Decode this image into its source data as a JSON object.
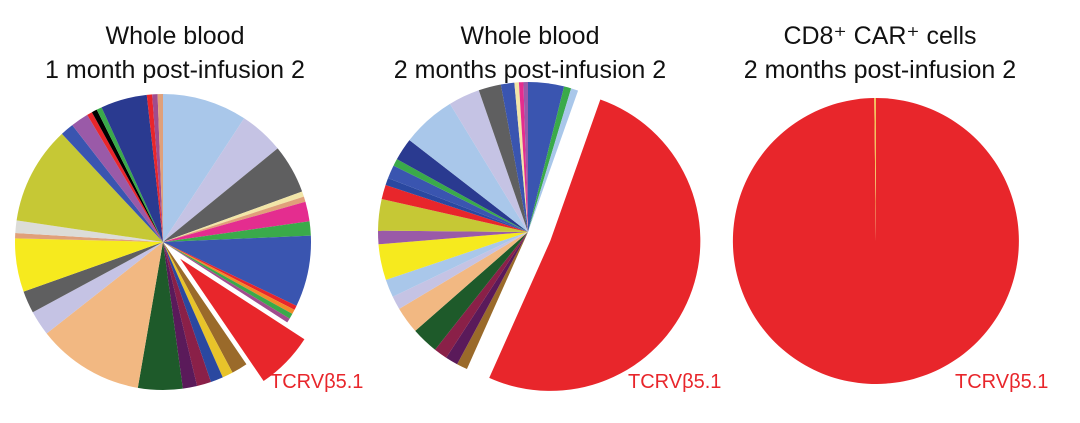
{
  "chart_data": [
    {
      "type": "pie",
      "title": [
        "Whole blood",
        "1 month post-infusion 2"
      ],
      "highlight_label": "TCRVβ5.1",
      "highlight_color": "#e8262b",
      "start_angle_deg": 0,
      "slices": [
        {
          "value": 9.5,
          "color": "#a9c7ea"
        },
        {
          "value": 5.0,
          "color": "#c5c3e4"
        },
        {
          "value": 5.5,
          "color": "#5f5f60"
        },
        {
          "value": 0.6,
          "color": "#f2e6a8"
        },
        {
          "value": 0.6,
          "color": "#e0a07a"
        },
        {
          "value": 2.2,
          "color": "#e42d8f"
        },
        {
          "value": 1.6,
          "color": "#3aaa4a"
        },
        {
          "value": 8.0,
          "color": "#3a55b0"
        },
        {
          "value": 0.5,
          "color": "#e8262b"
        },
        {
          "value": 0.5,
          "color": "#f28a2a"
        },
        {
          "value": 0.6,
          "color": "#3aaa4a"
        },
        {
          "value": 0.5,
          "color": "#a04c8e"
        },
        {
          "value": 6.5,
          "color": "#e8262b",
          "highlight": true
        },
        {
          "value": 1.8,
          "color": "#9a6a2a"
        },
        {
          "value": 1.2,
          "color": "#e8c32a"
        },
        {
          "value": 1.4,
          "color": "#2a48a0"
        },
        {
          "value": 1.6,
          "color": "#8a2048"
        },
        {
          "value": 1.6,
          "color": "#5a1a5a"
        },
        {
          "value": 5.0,
          "color": "#1e5a2a"
        },
        {
          "value": 12.0,
          "color": "#f2b882"
        },
        {
          "value": 2.8,
          "color": "#c5c3e4"
        },
        {
          "value": 2.5,
          "color": "#5f5f60"
        },
        {
          "value": 6.0,
          "color": "#f6ea1e"
        },
        {
          "value": 0.6,
          "color": "#e0a07a"
        },
        {
          "value": 1.4,
          "color": "#dcdcd8"
        },
        {
          "value": 11.0,
          "color": "#c6c835"
        },
        {
          "value": 1.5,
          "color": "#3a55b0"
        },
        {
          "value": 2.0,
          "color": "#9a5aa8"
        },
        {
          "value": 0.6,
          "color": "#e8262b"
        },
        {
          "value": 0.6,
          "color": "#000000"
        },
        {
          "value": 0.6,
          "color": "#3aaa4a"
        },
        {
          "value": 5.2,
          "color": "#2a3a90"
        },
        {
          "value": 0.6,
          "color": "#e8262b"
        },
        {
          "value": 0.6,
          "color": "#a04c8e"
        },
        {
          "value": 0.6,
          "color": "#e0a07a"
        }
      ]
    },
    {
      "type": "pie",
      "title": [
        "Whole blood",
        "2 months post-infusion 2"
      ],
      "highlight_label": "TCRVβ5.1",
      "highlight_color": "#e8262b",
      "start_angle_deg": 0,
      "slices": [
        {
          "value": 4.0,
          "color": "#3a55b0"
        },
        {
          "value": 0.8,
          "color": "#3aaa4a"
        },
        {
          "value": 0.8,
          "color": "#a9c7ea"
        },
        {
          "value": 53.0,
          "color": "#e8262b",
          "highlight": true
        },
        {
          "value": 1.2,
          "color": "#9a6a2a"
        },
        {
          "value": 1.4,
          "color": "#5a1a5a"
        },
        {
          "value": 1.5,
          "color": "#8a2048"
        },
        {
          "value": 3.0,
          "color": "#1e5a2a"
        },
        {
          "value": 3.0,
          "color": "#f2b882"
        },
        {
          "value": 1.5,
          "color": "#c5c3e4"
        },
        {
          "value": 2.0,
          "color": "#a9c7ea"
        },
        {
          "value": 4.0,
          "color": "#f6ea1e"
        },
        {
          "value": 1.5,
          "color": "#9a5aa8"
        },
        {
          "value": 3.5,
          "color": "#c6c835"
        },
        {
          "value": 1.6,
          "color": "#e8262b"
        },
        {
          "value": 0.8,
          "color": "#2a48a0"
        },
        {
          "value": 1.5,
          "color": "#3a55b0"
        },
        {
          "value": 0.8,
          "color": "#3aaa4a"
        },
        {
          "value": 2.5,
          "color": "#2a3a90"
        },
        {
          "value": 6.0,
          "color": "#a9c7ea"
        },
        {
          "value": 3.5,
          "color": "#c5c3e4"
        },
        {
          "value": 2.5,
          "color": "#5f5f60"
        },
        {
          "value": 1.5,
          "color": "#3a55b0"
        },
        {
          "value": 0.5,
          "color": "#f2e6a8"
        },
        {
          "value": 0.5,
          "color": "#e42d8f"
        },
        {
          "value": 0.5,
          "color": "#9a5aa8"
        }
      ]
    },
    {
      "type": "pie",
      "title": [
        "CD8⁺ CAR⁺ cells",
        "2 months post-infusion 2"
      ],
      "highlight_label": "TCRVβ5.1",
      "highlight_color": "#e8262b",
      "start_angle_deg": 0,
      "slices": [
        {
          "value": 99.8,
          "color": "#e8262b",
          "highlight": true
        },
        {
          "value": 0.2,
          "color": "#f2c25a"
        }
      ]
    }
  ]
}
